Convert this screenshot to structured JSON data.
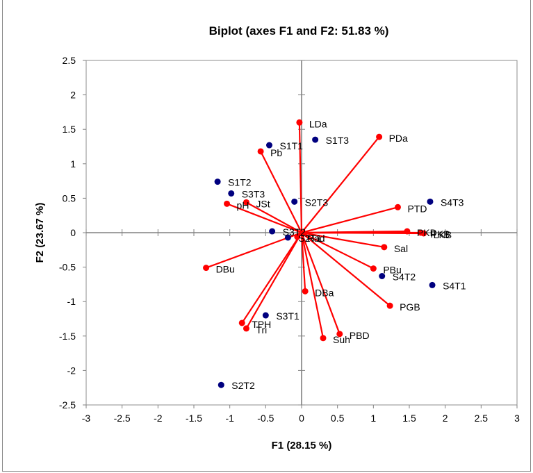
{
  "chart_data": {
    "type": "scatter",
    "title": "Biplot (axes F1 and F2: 51.83 %)",
    "xlabel": "F1 (28.15 %)",
    "ylabel": "F2 (23.67 %)",
    "xlim": [
      -3,
      3
    ],
    "ylim": [
      -2.5,
      2.5
    ],
    "xticks": [
      -3,
      -2.5,
      -2,
      -1.5,
      -1,
      -0.5,
      0,
      0.5,
      1,
      1.5,
      2,
      2.5,
      3
    ],
    "yticks": [
      -2.5,
      -2,
      -1.5,
      -1,
      -0.5,
      0,
      0.5,
      1,
      1.5,
      2,
      2.5
    ],
    "grid": false,
    "colors": {
      "observations": "#00007f",
      "variables": "#ff0000",
      "axes": "#808080"
    },
    "series": [
      {
        "name": "observations",
        "marker": "circle",
        "points": [
          {
            "label": "S1T1",
            "x": -0.45,
            "y": 1.27
          },
          {
            "label": "S1T3",
            "x": 0.19,
            "y": 1.35
          },
          {
            "label": "S1T2",
            "x": -1.17,
            "y": 0.74
          },
          {
            "label": "S3T3",
            "x": -0.98,
            "y": 0.57
          },
          {
            "label": "S2T3",
            "x": -0.1,
            "y": 0.45
          },
          {
            "label": "S4T3",
            "x": 1.79,
            "y": 0.45
          },
          {
            "label": "S3T2",
            "x": -0.41,
            "y": 0.02
          },
          {
            "label": "S2T1",
            "x": -0.19,
            "y": -0.07
          },
          {
            "label": "S4T2",
            "x": 1.12,
            "y": -0.63
          },
          {
            "label": "S4T1",
            "x": 1.82,
            "y": -0.76
          },
          {
            "label": "S3T1",
            "x": -0.5,
            "y": -1.2
          },
          {
            "label": "S2T2",
            "x": -1.12,
            "y": -2.21
          }
        ]
      },
      {
        "name": "variables",
        "marker": "vector",
        "points": [
          {
            "label": "LDa",
            "x": -0.03,
            "y": 1.6
          },
          {
            "label": "PDa",
            "x": 1.08,
            "y": 1.39
          },
          {
            "label": "Pb",
            "x": -0.57,
            "y": 1.18
          },
          {
            "label": "pH",
            "x": -1.04,
            "y": 0.42
          },
          {
            "label": "JSt",
            "x": -0.77,
            "y": 0.44
          },
          {
            "label": "PTD",
            "x": 1.34,
            "y": 0.37
          },
          {
            "label": "PKD",
            "x": 1.47,
            "y": 0.02
          },
          {
            "label": "PKB",
            "x": 1.66,
            "y": 0.0
          },
          {
            "label": "LKB",
            "x": 1.7,
            "y": -0.01
          },
          {
            "label": "Rad",
            "x": -0.06,
            "y": -0.06
          },
          {
            "label": "Sal",
            "x": 1.15,
            "y": -0.21
          },
          {
            "label": "DBu",
            "x": -1.33,
            "y": -0.51
          },
          {
            "label": "PBu",
            "x": 1.0,
            "y": -0.52
          },
          {
            "label": "DBa",
            "x": 0.05,
            "y": -0.85
          },
          {
            "label": "PGB",
            "x": 1.23,
            "y": -1.06
          },
          {
            "label": "TPH",
            "x": -0.83,
            "y": -1.31
          },
          {
            "label": "Tri",
            "x": -0.77,
            "y": -1.39
          },
          {
            "label": "PBD",
            "x": 0.53,
            "y": -1.47
          },
          {
            "label": "Suh",
            "x": 0.3,
            "y": -1.53
          }
        ]
      }
    ]
  }
}
